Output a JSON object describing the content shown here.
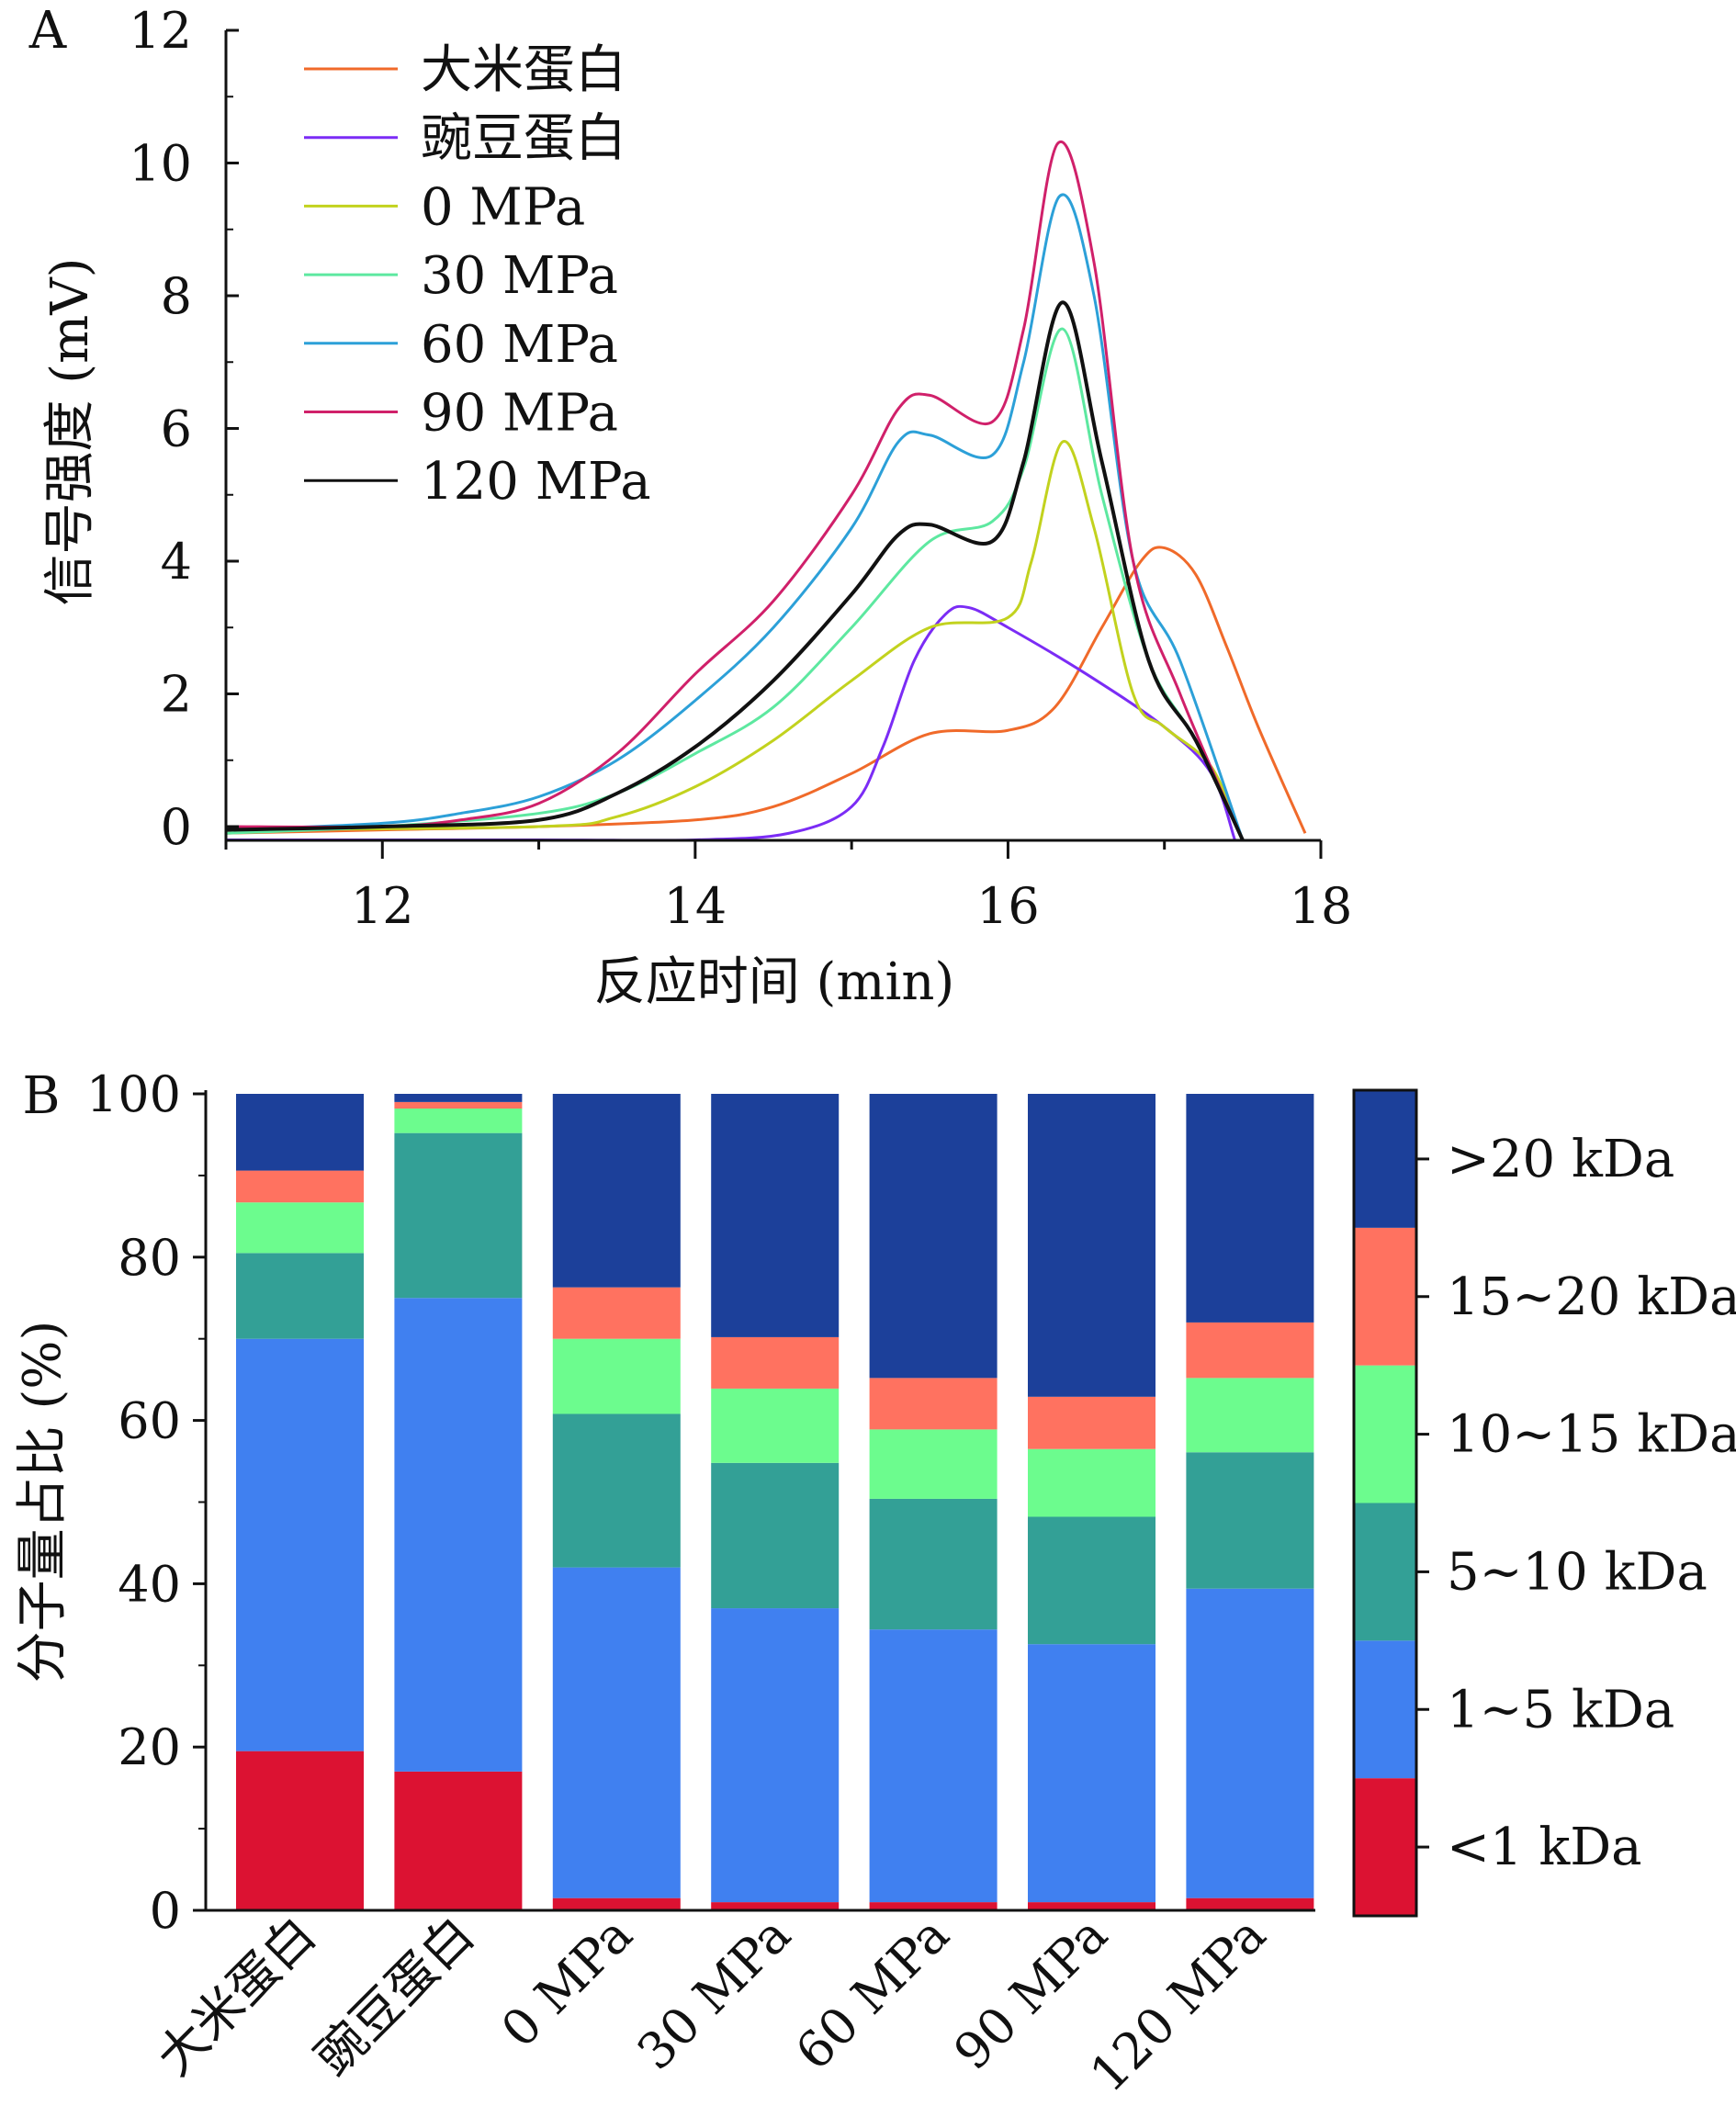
{
  "chart_data": [
    {
      "panel": "A",
      "type": "line",
      "xlabel": "反应时间 (min)",
      "ylabel": "信号强度 (mV)",
      "xlim": [
        11,
        18
      ],
      "ylim": [
        0,
        12
      ],
      "xticks": [
        12,
        14,
        16,
        18
      ],
      "yticks": [
        0,
        2,
        4,
        6,
        8,
        10,
        12
      ],
      "legend_position": "top-left",
      "series": [
        {
          "name": "大米蛋白",
          "color": "#f06a2a",
          "points": [
            [
              11,
              -0.1
            ],
            [
              12,
              -0.05
            ],
            [
              13,
              0
            ],
            [
              14,
              0.1
            ],
            [
              14.5,
              0.3
            ],
            [
              15,
              0.8
            ],
            [
              15.5,
              1.4
            ],
            [
              16,
              1.45
            ],
            [
              16.3,
              1.8
            ],
            [
              16.6,
              3.0
            ],
            [
              16.85,
              4.0
            ],
            [
              17.0,
              4.2
            ],
            [
              17.2,
              3.8
            ],
            [
              17.4,
              2.7
            ],
            [
              17.6,
              1.5
            ],
            [
              17.9,
              -0.1
            ]
          ]
        },
        {
          "name": "豌豆蛋白",
          "color": "#7b2cf5",
          "points": [
            [
              11,
              -0.2
            ],
            [
              13,
              -0.2
            ],
            [
              14,
              -0.2
            ],
            [
              14.6,
              -0.1
            ],
            [
              15,
              0.3
            ],
            [
              15.2,
              1.2
            ],
            [
              15.4,
              2.5
            ],
            [
              15.6,
              3.2
            ],
            [
              15.75,
              3.3
            ],
            [
              16,
              3.0
            ],
            [
              16.5,
              2.3
            ],
            [
              17,
              1.5
            ],
            [
              17.3,
              0.8
            ],
            [
              17.45,
              -0.2
            ]
          ]
        },
        {
          "name": "0 MPa",
          "color": "#c2d21e",
          "points": [
            [
              11,
              -0.05
            ],
            [
              13,
              0
            ],
            [
              13.5,
              0.15
            ],
            [
              14,
              0.6
            ],
            [
              14.5,
              1.3
            ],
            [
              15,
              2.2
            ],
            [
              15.5,
              3.0
            ],
            [
              16,
              3.15
            ],
            [
              16.15,
              4.0
            ],
            [
              16.35,
              5.8
            ],
            [
              16.55,
              4.5
            ],
            [
              16.8,
              2.0
            ],
            [
              17,
              1.5
            ],
            [
              17.3,
              0.9
            ],
            [
              17.5,
              -0.2
            ]
          ]
        },
        {
          "name": "30 MPa",
          "color": "#5de8a0",
          "points": [
            [
              11,
              -0.1
            ],
            [
              12,
              0
            ],
            [
              13,
              0.2
            ],
            [
              13.5,
              0.5
            ],
            [
              14,
              1.1
            ],
            [
              14.5,
              1.8
            ],
            [
              15,
              3.0
            ],
            [
              15.5,
              4.3
            ],
            [
              15.9,
              4.6
            ],
            [
              16.1,
              5.4
            ],
            [
              16.35,
              7.5
            ],
            [
              16.6,
              5.0
            ],
            [
              16.9,
              2.5
            ],
            [
              17.2,
              1.3
            ],
            [
              17.5,
              -0.2
            ]
          ]
        },
        {
          "name": "60 MPa",
          "color": "#2ca0d8",
          "points": [
            [
              11,
              -0.05
            ],
            [
              12,
              0.05
            ],
            [
              12.5,
              0.2
            ],
            [
              13,
              0.45
            ],
            [
              13.5,
              1.0
            ],
            [
              14,
              1.9
            ],
            [
              14.5,
              3.0
            ],
            [
              15,
              4.5
            ],
            [
              15.3,
              5.8
            ],
            [
              15.5,
              5.9
            ],
            [
              15.9,
              5.6
            ],
            [
              16.1,
              7.0
            ],
            [
              16.33,
              9.5
            ],
            [
              16.55,
              8.0
            ],
            [
              16.8,
              4.0
            ],
            [
              17.1,
              2.5
            ],
            [
              17.5,
              -0.2
            ]
          ]
        },
        {
          "name": "90 MPa",
          "color": "#d0206a",
          "points": [
            [
              11,
              0
            ],
            [
              12,
              0
            ],
            [
              12.5,
              0.1
            ],
            [
              13,
              0.35
            ],
            [
              13.5,
              1.1
            ],
            [
              14,
              2.3
            ],
            [
              14.5,
              3.4
            ],
            [
              15,
              5.0
            ],
            [
              15.3,
              6.3
            ],
            [
              15.5,
              6.5
            ],
            [
              15.9,
              6.1
            ],
            [
              16.1,
              7.5
            ],
            [
              16.32,
              10.3
            ],
            [
              16.55,
              8.5
            ],
            [
              16.8,
              4.0
            ],
            [
              17.1,
              2.0
            ],
            [
              17.5,
              -0.2
            ]
          ]
        },
        {
          "name": "120 MPa",
          "color": "#111111",
          "points": [
            [
              11,
              -0.05
            ],
            [
              12,
              0
            ],
            [
              13,
              0.1
            ],
            [
              13.5,
              0.5
            ],
            [
              14,
              1.2
            ],
            [
              14.5,
              2.2
            ],
            [
              15,
              3.5
            ],
            [
              15.3,
              4.4
            ],
            [
              15.5,
              4.55
            ],
            [
              15.9,
              4.3
            ],
            [
              16.1,
              5.5
            ],
            [
              16.35,
              7.9
            ],
            [
              16.6,
              5.5
            ],
            [
              16.9,
              2.5
            ],
            [
              17.2,
              1.3
            ],
            [
              17.5,
              -0.2
            ]
          ]
        }
      ]
    },
    {
      "panel": "B",
      "type": "bar",
      "stacked": true,
      "ylabel": "分子量占比 (%)",
      "ylim": [
        0,
        100
      ],
      "yticks": [
        0,
        20,
        40,
        60,
        80,
        100
      ],
      "legend_position": "right",
      "categories": [
        "大米蛋白",
        "豌豆蛋白",
        "0 MPa",
        "30 MPa",
        "60 MPa",
        "90 MPa",
        "120 MPa"
      ],
      "series": [
        {
          "name": "<1 kDa",
          "color": "#dc1232",
          "values": [
            19.5,
            17.0,
            1.5,
            1.0,
            1.0,
            1.0,
            1.5
          ]
        },
        {
          "name": "1~5 kDa",
          "color": "#4080f0",
          "values": [
            50.5,
            58.0,
            40.5,
            36.0,
            33.4,
            31.6,
            37.9
          ]
        },
        {
          "name": "5~10 kDa",
          "color": "#33a096",
          "values": [
            10.5,
            20.2,
            18.8,
            17.8,
            16.0,
            15.6,
            16.7
          ]
        },
        {
          "name": "10~15 kDa",
          "color": "#6cfc8e",
          "values": [
            6.2,
            3.0,
            9.2,
            9.1,
            8.5,
            8.3,
            9.1
          ]
        },
        {
          "name": "15~20 kDa",
          "color": "#ff7260",
          "values": [
            3.9,
            0.8,
            6.3,
            6.3,
            6.3,
            6.4,
            6.8
          ]
        },
        {
          "name": ">20 kDa",
          "color": "#1c409a",
          "values": [
            9.4,
            1.0,
            23.7,
            29.8,
            34.8,
            37.1,
            28.0
          ]
        }
      ]
    }
  ]
}
